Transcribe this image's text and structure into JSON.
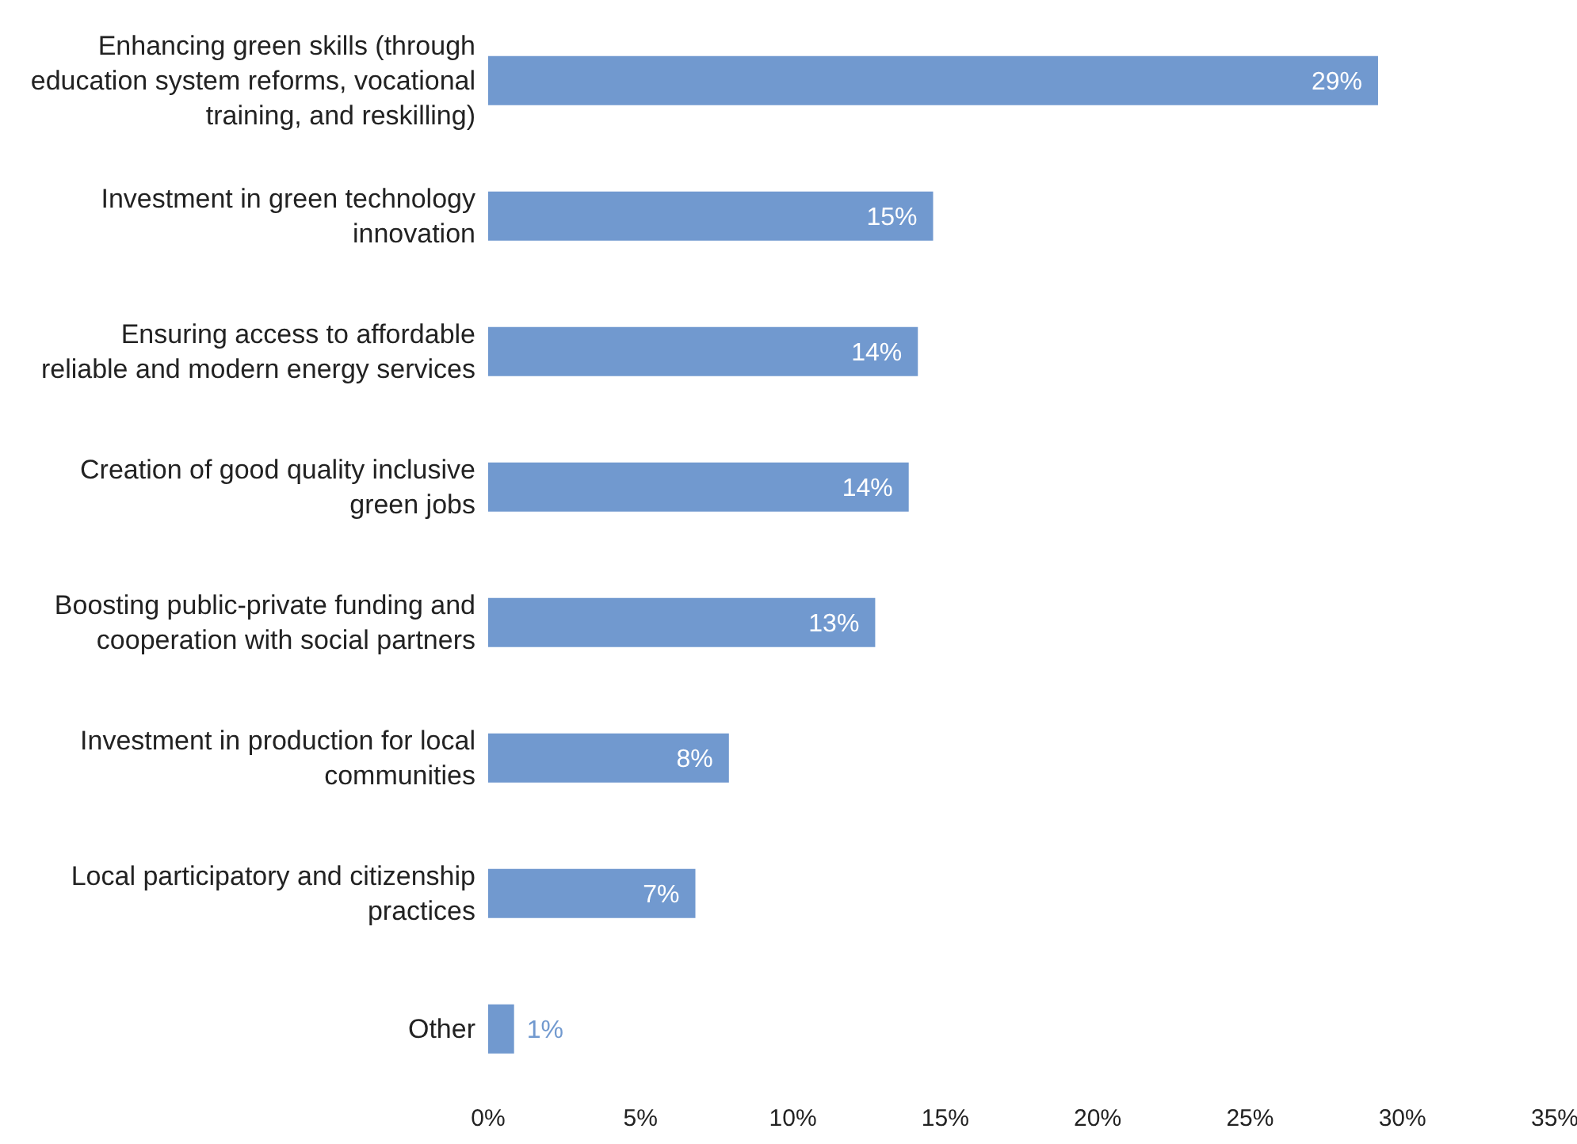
{
  "chart_data": {
    "type": "bar",
    "orientation": "horizontal",
    "categories": [
      "Enhancing green skills (through education system reforms, vocational training, and reskilling)",
      "Investment in green technology innovation",
      "Ensuring access to affordable reliable and modern energy services",
      "Creation of good quality inclusive green jobs ",
      "Boosting public-private funding and cooperation with social partners",
      "Investment in production for local communities",
      "Local participatory and citizenship practices",
      "Other"
    ],
    "values": [
      29.2,
      14.6,
      14.1,
      13.8,
      12.7,
      7.9,
      6.8,
      0.85
    ],
    "value_labels": [
      "29%",
      "15%",
      "14%",
      "14%",
      "13%",
      "8%",
      "7%",
      "1%"
    ],
    "color": "#7199cf",
    "xlim": [
      0,
      35
    ],
    "xticks": [
      {
        "value": 0,
        "label": "0%"
      },
      {
        "value": 5,
        "label": "5%"
      },
      {
        "value": 10,
        "label": "10%"
      },
      {
        "value": 15,
        "label": "15%"
      },
      {
        "value": 20,
        "label": "20%"
      },
      {
        "value": 25,
        "label": "25%"
      },
      {
        "value": 30,
        "label": "30%"
      },
      {
        "value": 35,
        "label": "35%"
      }
    ],
    "grid": false,
    "legend": false
  }
}
